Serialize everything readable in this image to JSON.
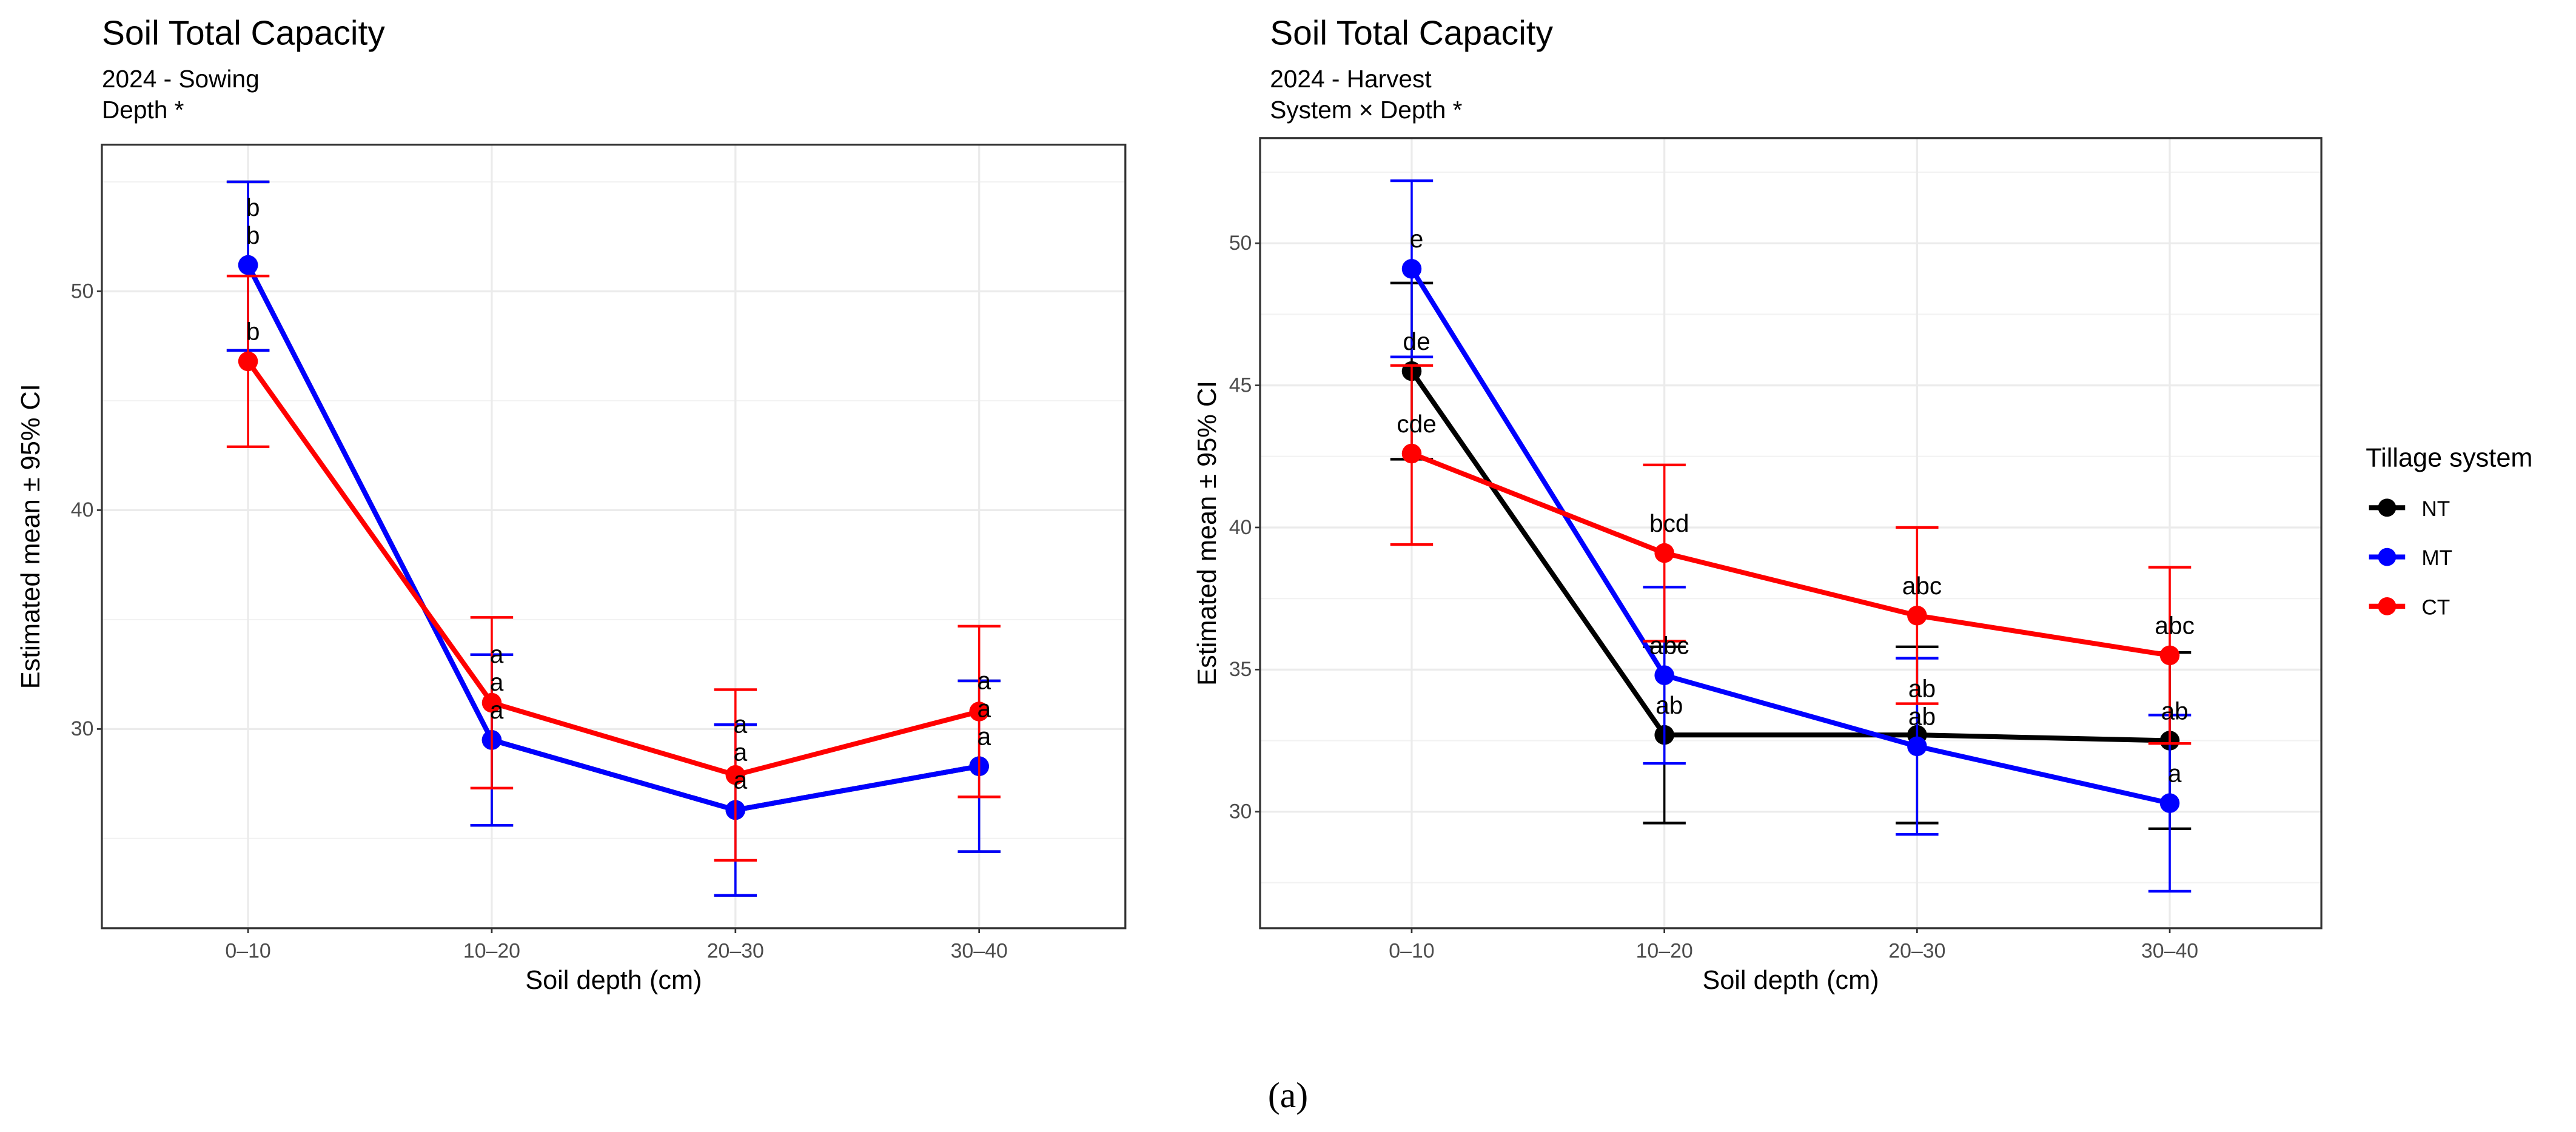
{
  "chart_data": [
    {
      "type": "line",
      "title": "Soil Total Capacity",
      "subtitle": "2024 - Sowing",
      "subtitle2": " Depth *",
      "xlabel": "Soil depth (cm)",
      "ylabel": "Estimated mean ± 95% CI",
      "categories": [
        "0–10",
        "10–20",
        "20–30",
        "30–40"
      ],
      "ylim": [
        20.9,
        56.7
      ],
      "yticks": [
        30,
        40,
        50
      ],
      "grid": true,
      "series": [
        {
          "name": "NT",
          "color": "#000000",
          "values": [
            51.2,
            29.5,
            26.3,
            28.3
          ],
          "lower": [
            47.3,
            25.6,
            22.4,
            24.4
          ],
          "upper": [
            55.0,
            33.4,
            30.2,
            32.2
          ],
          "letters": [
            "b",
            "a",
            "a",
            "a"
          ]
        },
        {
          "name": "MT",
          "color": "#0000ff",
          "values": [
            51.2,
            29.5,
            26.3,
            28.3
          ],
          "lower": [
            47.3,
            25.6,
            22.4,
            24.4
          ],
          "upper": [
            55.0,
            33.4,
            30.2,
            32.2
          ],
          "letters": [
            "b",
            "a",
            "a",
            "a"
          ]
        },
        {
          "name": "CT",
          "color": "#ff0000",
          "values": [
            46.8,
            31.2,
            27.9,
            30.8
          ],
          "lower": [
            42.9,
            27.3,
            24.0,
            26.9
          ],
          "upper": [
            50.7,
            35.1,
            31.8,
            34.7
          ],
          "letters": [
            "b",
            "a",
            "a",
            "a"
          ]
        }
      ]
    },
    {
      "type": "line",
      "title": "Soil Total Capacity",
      "subtitle": "2024 - Harvest",
      "subtitle2": " System × Depth *",
      "xlabel": "Soil depth (cm)",
      "ylabel": "Estimated mean ± 95% CI",
      "categories": [
        "0–10",
        "10–20",
        "20–30",
        "30–40"
      ],
      "ylim": [
        25.9,
        53.7
      ],
      "yticks": [
        30,
        35,
        40,
        45,
        50
      ],
      "grid": true,
      "legend": {
        "title": "Tillage system",
        "position": "right"
      },
      "series": [
        {
          "name": "NT",
          "color": "#000000",
          "values": [
            45.5,
            32.7,
            32.7,
            32.5
          ],
          "lower": [
            42.4,
            29.6,
            29.6,
            29.4
          ],
          "upper": [
            48.6,
            35.8,
            35.8,
            35.6
          ],
          "letters": [
            "de",
            "ab",
            "ab",
            "ab"
          ]
        },
        {
          "name": "MT",
          "color": "#0000ff",
          "values": [
            49.1,
            34.8,
            32.3,
            30.3
          ],
          "lower": [
            46.0,
            31.7,
            29.2,
            27.2
          ],
          "upper": [
            52.2,
            37.9,
            35.4,
            33.4
          ],
          "letters": [
            "e",
            "abc",
            "ab",
            "a"
          ]
        },
        {
          "name": "CT",
          "color": "#ff0000",
          "values": [
            42.6,
            39.1,
            36.9,
            35.5
          ],
          "lower": [
            39.4,
            36.0,
            33.8,
            32.4
          ],
          "upper": [
            45.7,
            42.2,
            40.0,
            38.6
          ],
          "letters": [
            "cde",
            "bcd",
            "abc",
            "abc"
          ]
        }
      ]
    }
  ],
  "caption": "(a)"
}
